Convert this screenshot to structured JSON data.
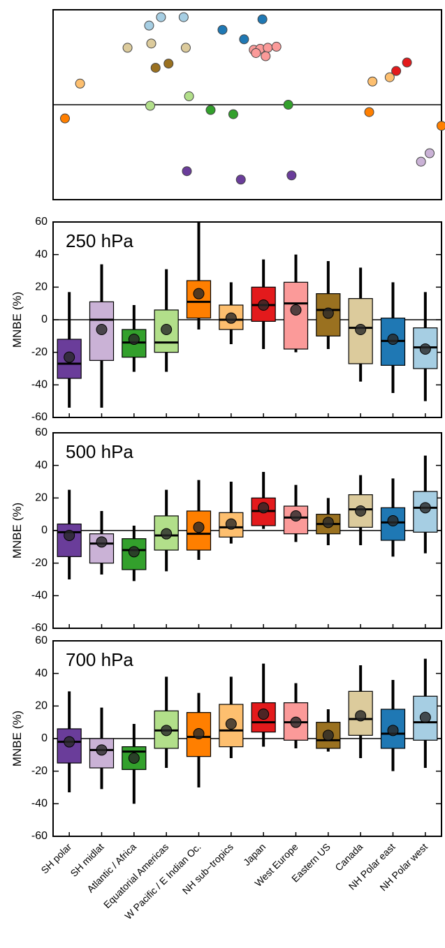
{
  "chart_data": [
    {
      "type": "map",
      "xlim": [
        -180,
        180
      ],
      "ylim": [
        -90,
        90
      ],
      "colors": [
        "#6a3d9a",
        "#cab2d6",
        "#33a02c",
        "#b2df8a",
        "#ff7f00",
        "#fdbf6f",
        "#e31a1c",
        "#fb9a99",
        "#9a7120",
        "#dccb9c",
        "#1f78b4",
        "#a6cee3"
      ],
      "stations": [
        {
          "lon": -80,
          "lat": 83,
          "region": 11
        },
        {
          "lon": -59,
          "lat": 83,
          "region": 11
        },
        {
          "lon": -91,
          "lat": 75,
          "region": 11
        },
        {
          "lon": 14,
          "lat": 81,
          "region": 10
        },
        {
          "lon": -23,
          "lat": 71,
          "region": 10
        },
        {
          "lon": -3,
          "lat": 62,
          "region": 10
        },
        {
          "lon": -89,
          "lat": 58,
          "region": 9
        },
        {
          "lon": -111,
          "lat": 54,
          "region": 9
        },
        {
          "lon": -57,
          "lat": 54,
          "region": 9
        },
        {
          "lon": -85,
          "lat": 35,
          "region": 8
        },
        {
          "lon": -73,
          "lat": 39,
          "region": 8
        },
        {
          "lon": 6,
          "lat": 52,
          "region": 7
        },
        {
          "lon": 12,
          "lat": 53,
          "region": 7
        },
        {
          "lon": 19,
          "lat": 54,
          "region": 7
        },
        {
          "lon": 27,
          "lat": 55,
          "region": 7
        },
        {
          "lon": 17,
          "lat": 46,
          "region": 7
        },
        {
          "lon": 8,
          "lat": 49,
          "region": 7
        },
        {
          "lon": 148,
          "lat": 40,
          "region": 6
        },
        {
          "lon": 138,
          "lat": 32,
          "region": 6
        },
        {
          "lon": -155,
          "lat": 20,
          "region": 5
        },
        {
          "lon": 116,
          "lat": 22,
          "region": 5
        },
        {
          "lon": 132,
          "lat": 26,
          "region": 5
        },
        {
          "lon": -169,
          "lat": -13,
          "region": 4
        },
        {
          "lon": 113,
          "lat": -7,
          "region": 4
        },
        {
          "lon": 180,
          "lat": -20,
          "region": 4
        },
        {
          "lon": -90,
          "lat": -1,
          "region": 3
        },
        {
          "lon": -54,
          "lat": 8,
          "region": 3
        },
        {
          "lon": -34,
          "lat": -5,
          "region": 2
        },
        {
          "lon": -13,
          "lat": -9,
          "region": 2
        },
        {
          "lon": 38,
          "lat": 0,
          "region": 2
        },
        {
          "lon": 161,
          "lat": -54,
          "region": 1
        },
        {
          "lon": 169,
          "lat": -46,
          "region": 1
        },
        {
          "lon": -56,
          "lat": -63,
          "region": 0
        },
        {
          "lon": -6,
          "lat": -71,
          "region": 0
        },
        {
          "lon": 41,
          "lat": -67,
          "region": 0
        }
      ]
    },
    {
      "type": "box",
      "label": "250 hPa",
      "ylabel": "MNBE (%)",
      "ylim": [
        -60,
        60
      ],
      "yticks": [
        -60,
        -40,
        -20,
        0,
        20,
        40,
        60
      ],
      "colors": [
        "#6a3d9a",
        "#cab2d6",
        "#33a02c",
        "#b2df8a",
        "#ff7f00",
        "#fdbf6f",
        "#e31a1c",
        "#fb9a99",
        "#9a7120",
        "#dccb9c",
        "#1f78b4",
        "#a6cee3"
      ],
      "boxes": [
        {
          "whislo": -54,
          "q1": -36,
          "med": -27,
          "q3": -12,
          "whishi": 17,
          "mean": -23
        },
        {
          "whislo": -54,
          "q1": -25,
          "med": 0,
          "q3": 11,
          "whishi": 34,
          "mean": -6
        },
        {
          "whislo": -32,
          "q1": -23,
          "med": -14,
          "q3": -6,
          "whishi": 9,
          "mean": -12
        },
        {
          "whislo": -32,
          "q1": -20,
          "med": -14,
          "q3": 6,
          "whishi": 31,
          "mean": -6
        },
        {
          "whislo": -6,
          "q1": 1,
          "med": 11,
          "q3": 24,
          "whishi": 60,
          "mean": 16
        },
        {
          "whislo": -15,
          "q1": -6,
          "med": 0,
          "q3": 9,
          "whishi": 23,
          "mean": 1
        },
        {
          "whislo": -18,
          "q1": -1,
          "med": 9,
          "q3": 20,
          "whishi": 37,
          "mean": 9
        },
        {
          "whislo": -20,
          "q1": -18,
          "med": 10,
          "q3": 23,
          "whishi": 40,
          "mean": 6
        },
        {
          "whislo": -18,
          "q1": -10,
          "med": 6,
          "q3": 16,
          "whishi": 36,
          "mean": 4
        },
        {
          "whislo": -38,
          "q1": -27,
          "med": -5,
          "q3": 13,
          "whishi": 32,
          "mean": -6
        },
        {
          "whislo": -45,
          "q1": -28,
          "med": -13,
          "q3": 1,
          "whishi": 23,
          "mean": -12
        },
        {
          "whislo": -50,
          "q1": -30,
          "med": -17,
          "q3": -5,
          "whishi": 17,
          "mean": -18
        }
      ]
    },
    {
      "type": "box",
      "label": "500 hPa",
      "ylabel": "MNBE (%)",
      "ylim": [
        -60,
        60
      ],
      "yticks": [
        -60,
        -40,
        -20,
        0,
        20,
        40,
        60
      ],
      "colors": [
        "#6a3d9a",
        "#cab2d6",
        "#33a02c",
        "#b2df8a",
        "#ff7f00",
        "#fdbf6f",
        "#e31a1c",
        "#fb9a99",
        "#9a7120",
        "#dccb9c",
        "#1f78b4",
        "#a6cee3"
      ],
      "boxes": [
        {
          "whislo": -30,
          "q1": -16,
          "med": -1,
          "q3": 4,
          "whishi": 25,
          "mean": -3
        },
        {
          "whislo": -27,
          "q1": -20,
          "med": -8,
          "q3": -2,
          "whishi": 12,
          "mean": -7
        },
        {
          "whislo": -31,
          "q1": -24,
          "med": -12,
          "q3": -5,
          "whishi": 3,
          "mean": -13
        },
        {
          "whislo": -25,
          "q1": -12,
          "med": -3,
          "q3": 9,
          "whishi": 25,
          "mean": -2
        },
        {
          "whislo": -18,
          "q1": -12,
          "med": -2,
          "q3": 12,
          "whishi": 31,
          "mean": 2
        },
        {
          "whislo": -8,
          "q1": -4,
          "med": 2,
          "q3": 11,
          "whishi": 30,
          "mean": 4
        },
        {
          "whislo": 1,
          "q1": 3,
          "med": 12,
          "q3": 20,
          "whishi": 36,
          "mean": 14
        },
        {
          "whislo": -7,
          "q1": -2,
          "med": 8,
          "q3": 15,
          "whishi": 28,
          "mean": 9
        },
        {
          "whislo": -9,
          "q1": -2,
          "med": 4,
          "q3": 10,
          "whishi": 20,
          "mean": 5
        },
        {
          "whislo": -9,
          "q1": 2,
          "med": 13,
          "q3": 22,
          "whishi": 34,
          "mean": 12
        },
        {
          "whislo": -16,
          "q1": -6,
          "med": 5,
          "q3": 14,
          "whishi": 32,
          "mean": 6
        },
        {
          "whislo": -14,
          "q1": -1,
          "med": 14,
          "q3": 24,
          "whishi": 46,
          "mean": 14
        }
      ]
    },
    {
      "type": "box",
      "label": "700 hPa",
      "ylabel": "MNBE (%)",
      "ylim": [
        -60,
        60
      ],
      "yticks": [
        -60,
        -40,
        -20,
        0,
        20,
        40,
        60
      ],
      "categories": [
        "SH polar",
        "SH midlat",
        "Atlantic / Africa",
        "Equatorial Americas",
        "W Pacific / E Indian Oc.",
        "NH sub−tropics",
        "Japan",
        "West Europe",
        "Eastern US",
        "Canada",
        "NH Polar east",
        "NH Polar west"
      ],
      "colors": [
        "#6a3d9a",
        "#cab2d6",
        "#33a02c",
        "#b2df8a",
        "#ff7f00",
        "#fdbf6f",
        "#e31a1c",
        "#fb9a99",
        "#9a7120",
        "#dccb9c",
        "#1f78b4",
        "#a6cee3"
      ],
      "boxes": [
        {
          "whislo": -33,
          "q1": -15,
          "med": -2,
          "q3": 6,
          "whishi": 29,
          "mean": -2
        },
        {
          "whislo": -31,
          "q1": -18,
          "med": -7,
          "q3": 0,
          "whishi": 19,
          "mean": -7
        },
        {
          "whislo": -40,
          "q1": -19,
          "med": -8,
          "q3": -5,
          "whishi": 9,
          "mean": -12
        },
        {
          "whislo": -18,
          "q1": -6,
          "med": 5,
          "q3": 17,
          "whishi": 38,
          "mean": 5
        },
        {
          "whislo": -30,
          "q1": -11,
          "med": 1,
          "q3": 16,
          "whishi": 28,
          "mean": 3
        },
        {
          "whislo": -12,
          "q1": -5,
          "med": 5,
          "q3": 21,
          "whishi": 38,
          "mean": 9
        },
        {
          "whislo": -5,
          "q1": 4,
          "med": 10,
          "q3": 22,
          "whishi": 46,
          "mean": 15
        },
        {
          "whislo": -6,
          "q1": -1,
          "med": 10,
          "q3": 22,
          "whishi": 34,
          "mean": 10
        },
        {
          "whislo": -8,
          "q1": -6,
          "med": -1,
          "q3": 10,
          "whishi": 18,
          "mean": 2
        },
        {
          "whislo": -12,
          "q1": 2,
          "med": 12,
          "q3": 29,
          "whishi": 45,
          "mean": 14
        },
        {
          "whislo": -20,
          "q1": -6,
          "med": 3,
          "q3": 18,
          "whishi": 36,
          "mean": 5
        },
        {
          "whislo": -18,
          "q1": -1,
          "med": 10,
          "q3": 26,
          "whishi": 49,
          "mean": 13
        }
      ]
    }
  ]
}
